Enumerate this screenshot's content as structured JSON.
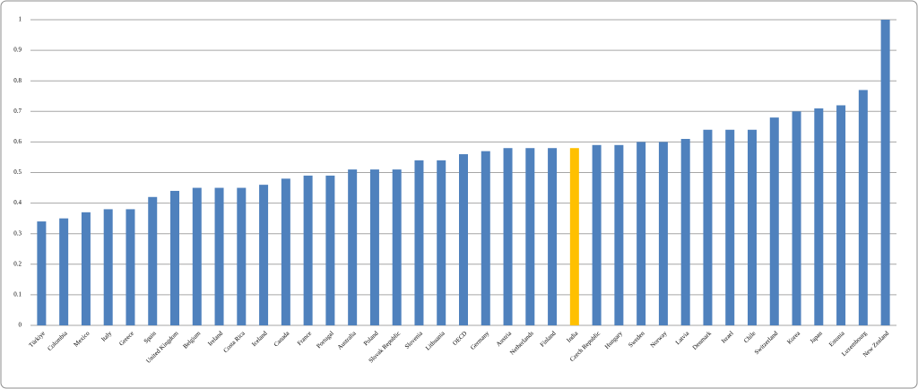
{
  "chart_data": {
    "type": "bar",
    "categories": [
      "Türkiye",
      "Colombia",
      "Mexico",
      "Italy",
      "Greece",
      "Spain",
      "United Kingdom",
      "Belgium",
      "Ireland",
      "Costa Rica",
      "Iceland",
      "Canada",
      "France",
      "Portugal",
      "Australia",
      "Poland",
      "Slovak Republic",
      "Slovenia",
      "Lithuania",
      "OECD",
      "Germany",
      "Austria",
      "Netherlands",
      "Finland",
      "India",
      "Czech Republic",
      "Hungary",
      "Sweden",
      "Norway",
      "Latvia",
      "Denmark",
      "Israel",
      "Chile",
      "Switzerland",
      "Korea",
      "Japan",
      "Estonia",
      "Luxembourg",
      "New Zealand"
    ],
    "values": [
      0.34,
      0.35,
      0.37,
      0.38,
      0.38,
      0.42,
      0.44,
      0.45,
      0.45,
      0.45,
      0.46,
      0.48,
      0.49,
      0.49,
      0.51,
      0.51,
      0.51,
      0.54,
      0.54,
      0.56,
      0.57,
      0.58,
      0.58,
      0.58,
      0.58,
      0.59,
      0.59,
      0.6,
      0.6,
      0.61,
      0.64,
      0.64,
      0.64,
      0.68,
      0.7,
      0.71,
      0.72,
      0.77,
      1
    ],
    "colors": [
      "#4f81bd",
      "#4f81bd",
      "#4f81bd",
      "#4f81bd",
      "#4f81bd",
      "#4f81bd",
      "#4f81bd",
      "#4f81bd",
      "#4f81bd",
      "#4f81bd",
      "#4f81bd",
      "#4f81bd",
      "#4f81bd",
      "#4f81bd",
      "#4f81bd",
      "#4f81bd",
      "#4f81bd",
      "#4f81bd",
      "#4f81bd",
      "#4f81bd",
      "#4f81bd",
      "#4f81bd",
      "#4f81bd",
      "#4f81bd",
      "#ffc000",
      "#4f81bd",
      "#4f81bd",
      "#4f81bd",
      "#4f81bd",
      "#4f81bd",
      "#4f81bd",
      "#4f81bd",
      "#4f81bd",
      "#4f81bd",
      "#4f81bd",
      "#4f81bd",
      "#4f81bd",
      "#4f81bd",
      "#4f81bd"
    ],
    "ylim": [
      0,
      1
    ],
    "yticks": [
      0,
      0.1,
      0.2,
      0.3,
      0.4,
      0.5,
      0.6,
      0.7,
      0.8,
      0.9,
      1
    ],
    "grid": true
  }
}
